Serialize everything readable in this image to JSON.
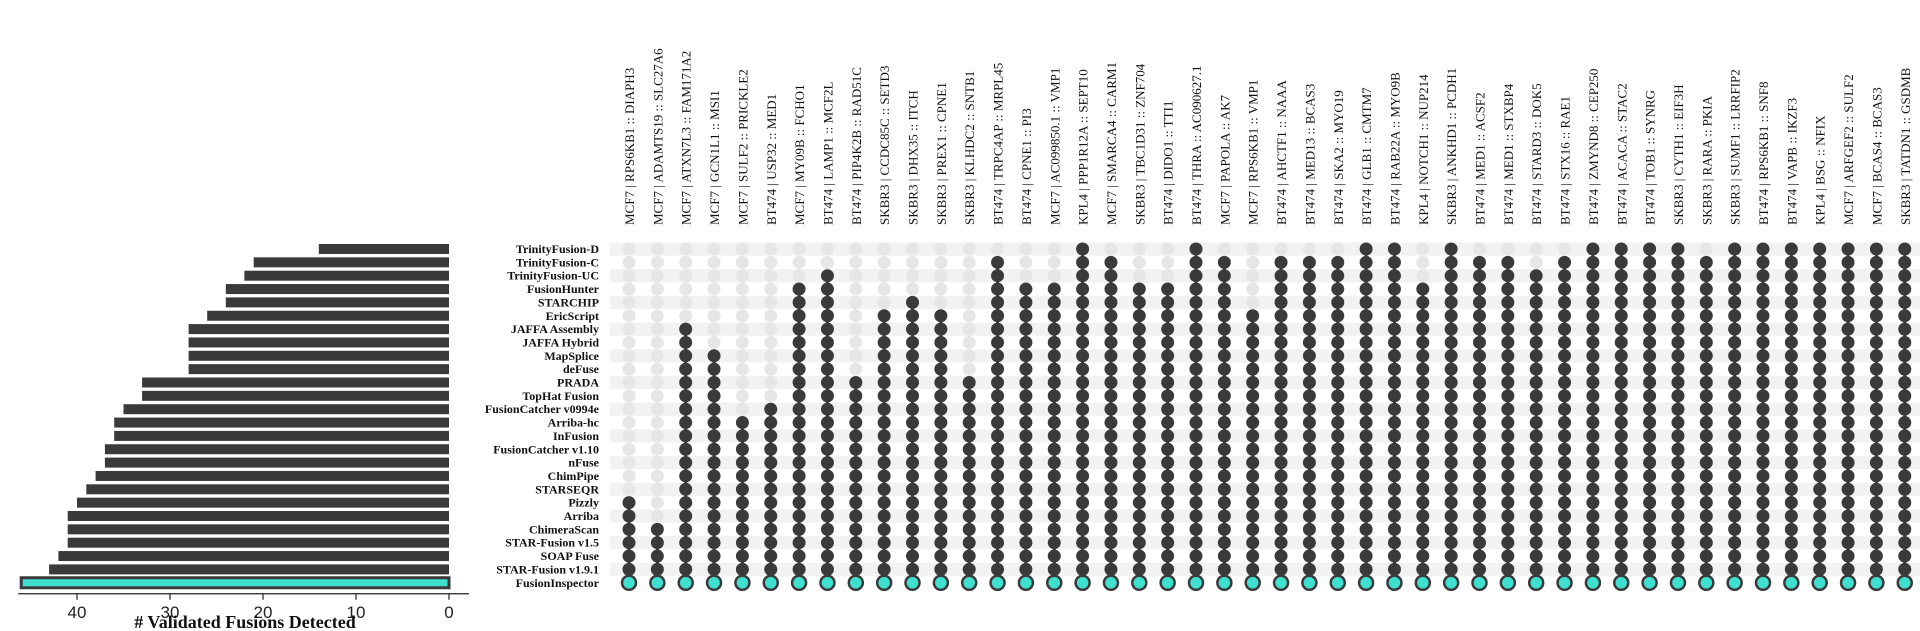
{
  "chart_data": {
    "type": "upset",
    "xlabel": "# Validated Fusions Detected",
    "xlim": [
      0,
      45
    ],
    "xticks": [
      40,
      30,
      20,
      10,
      0
    ],
    "colors": {
      "bar": "#3a3a3a",
      "highlight": "#40e0d0",
      "dot_on": "#3a3a3a",
      "dot_off": "#e6e6e6",
      "stripe": "#f2f2f2"
    },
    "methods": [
      {
        "name": "TrinityFusion-D",
        "count": 14
      },
      {
        "name": "TrinityFusion-C",
        "count": 21
      },
      {
        "name": "TrinityFusion-UC",
        "count": 22
      },
      {
        "name": "FusionHunter",
        "count": 24
      },
      {
        "name": "STARCHIP",
        "count": 24
      },
      {
        "name": "EricScript",
        "count": 26
      },
      {
        "name": "JAFFA Assembly",
        "count": 28
      },
      {
        "name": "JAFFA Hybrid",
        "count": 28
      },
      {
        "name": "MapSplice",
        "count": 28
      },
      {
        "name": "deFuse",
        "count": 28
      },
      {
        "name": "PRADA",
        "count": 33
      },
      {
        "name": "TopHat Fusion",
        "count": 33
      },
      {
        "name": "FusionCatcher v0994e",
        "count": 35
      },
      {
        "name": "Arriba-hc",
        "count": 36
      },
      {
        "name": "InFusion",
        "count": 36
      },
      {
        "name": "FusionCatcher v1.10",
        "count": 37
      },
      {
        "name": "nFuse",
        "count": 37
      },
      {
        "name": "ChimPipe",
        "count": 38
      },
      {
        "name": "STARSEQR",
        "count": 39
      },
      {
        "name": "Pizzly",
        "count": 40
      },
      {
        "name": "Arriba",
        "count": 41
      },
      {
        "name": "ChimeraScan",
        "count": 41
      },
      {
        "name": "STAR-Fusion v1.5",
        "count": 41
      },
      {
        "name": "SOAP Fuse",
        "count": 42
      },
      {
        "name": "STAR-Fusion v1.9.1",
        "count": 43
      },
      {
        "name": "FusionInspector",
        "count": 46
      }
    ],
    "fusions": [
      {
        "label": "MCF7 | RPS6KB1 :: DIAPH3",
        "first": 19
      },
      {
        "label": "MCF7 | ADAMTS19 :: SLC27A6",
        "first": 21
      },
      {
        "label": "MCF7 | ATXN7L3 :: FAM171A2",
        "first": 6
      },
      {
        "label": "MCF7 | GCN1L1 :: MSI1",
        "first": 8
      },
      {
        "label": "MCF7 | SULF2 :: PRICKLE2",
        "first": 13
      },
      {
        "label": "BT474 | USP32 :: MED1",
        "first": 12
      },
      {
        "label": "MCF7 | MY09B :: FCHO1",
        "first": 3
      },
      {
        "label": "BT474 | LAMP1 :: MCF2L",
        "first": 2
      },
      {
        "label": "BT474 | PIP4K2B :: RAD51C",
        "first": 10
      },
      {
        "label": "SKBR3 | CCDC85C :: SETD3",
        "first": 5
      },
      {
        "label": "SKBR3 | DHX35 :: ITCH",
        "first": 4
      },
      {
        "label": "SKBR3 | PREX1 :: CPNE1",
        "first": 5
      },
      {
        "label": "SKBR3 | KLHDC2 :: SNTB1",
        "first": 10
      },
      {
        "label": "BT474 | TRPC4AP :: MRPL45",
        "first": 1
      },
      {
        "label": "BT474 | CPNE1 :: PI3",
        "first": 3
      },
      {
        "label": "MCF7 | AC099850.1 :: VMP1",
        "first": 3
      },
      {
        "label": "KPL4 | PPP1R12A :: SEPT10",
        "first": 0
      },
      {
        "label": "MCF7 | SMARCA4 :: CARM1",
        "first": 1
      },
      {
        "label": "SKBR3 | TBC1D31 :: ZNF704",
        "first": 3
      },
      {
        "label": "BT474 | DIDO1 :: TTI1",
        "first": 3
      },
      {
        "label": "BT474 | THRA :: AC090627.1",
        "first": 0
      },
      {
        "label": "MCF7 | PAPOLA :: AK7",
        "first": 1
      },
      {
        "label": "MCF7 | RPS6KB1 :: VMP1",
        "first": 5
      },
      {
        "label": "BT474 | AHCTF1 :: NAAA",
        "first": 1
      },
      {
        "label": "BT474 | MED13 :: BCAS3",
        "first": 1
      },
      {
        "label": "BT474 | SKA2 :: MYO19",
        "first": 1
      },
      {
        "label": "BT474 | GLB1 :: CMTM7",
        "first": 0
      },
      {
        "label": "BT474 | RAB22A :: MYO9B",
        "first": 0
      },
      {
        "label": "KPL4 | NOTCH1 :: NUP214",
        "first": 3
      },
      {
        "label": "SKBR3 | ANKHD1 :: PCDH1",
        "first": 0
      },
      {
        "label": "BT474 | MED1 :: ACSF2",
        "first": 1
      },
      {
        "label": "BT474 | MED1 :: STXBP4",
        "first": 1
      },
      {
        "label": "BT474 | STARD3 :: DOK5",
        "first": 2
      },
      {
        "label": "BT474 | STX16 :: RAE1",
        "first": 1
      },
      {
        "label": "BT474 | ZMYND8 :: CEP250",
        "first": 0
      },
      {
        "label": "BT474 | ACACA :: STAC2",
        "first": 0
      },
      {
        "label": "BT474 | TOB1 :: SYNRG",
        "first": 0
      },
      {
        "label": "SKBR3 | CYTH1 :: EIF3H",
        "first": 0
      },
      {
        "label": "SKBR3 | RARA :: PKIA",
        "first": 1
      },
      {
        "label": "SKBR3 | SUMF1 :: LRRFIP2",
        "first": 0
      },
      {
        "label": "BT474 | RPS6KB1 :: SNF8",
        "first": 0
      },
      {
        "label": "BT474 | VAPB :: IKZF3",
        "first": 0
      },
      {
        "label": "KPL4 | BSG :: NFIX",
        "first": 0
      },
      {
        "label": "MCF7 | ARFGEF2 :: SULF2",
        "first": 0
      },
      {
        "label": "MCF7 | BCAS4 :: BCAS3",
        "first": 0
      },
      {
        "label": "SKBR3 | TATDN1 :: GSDMB",
        "first": 0
      }
    ]
  }
}
